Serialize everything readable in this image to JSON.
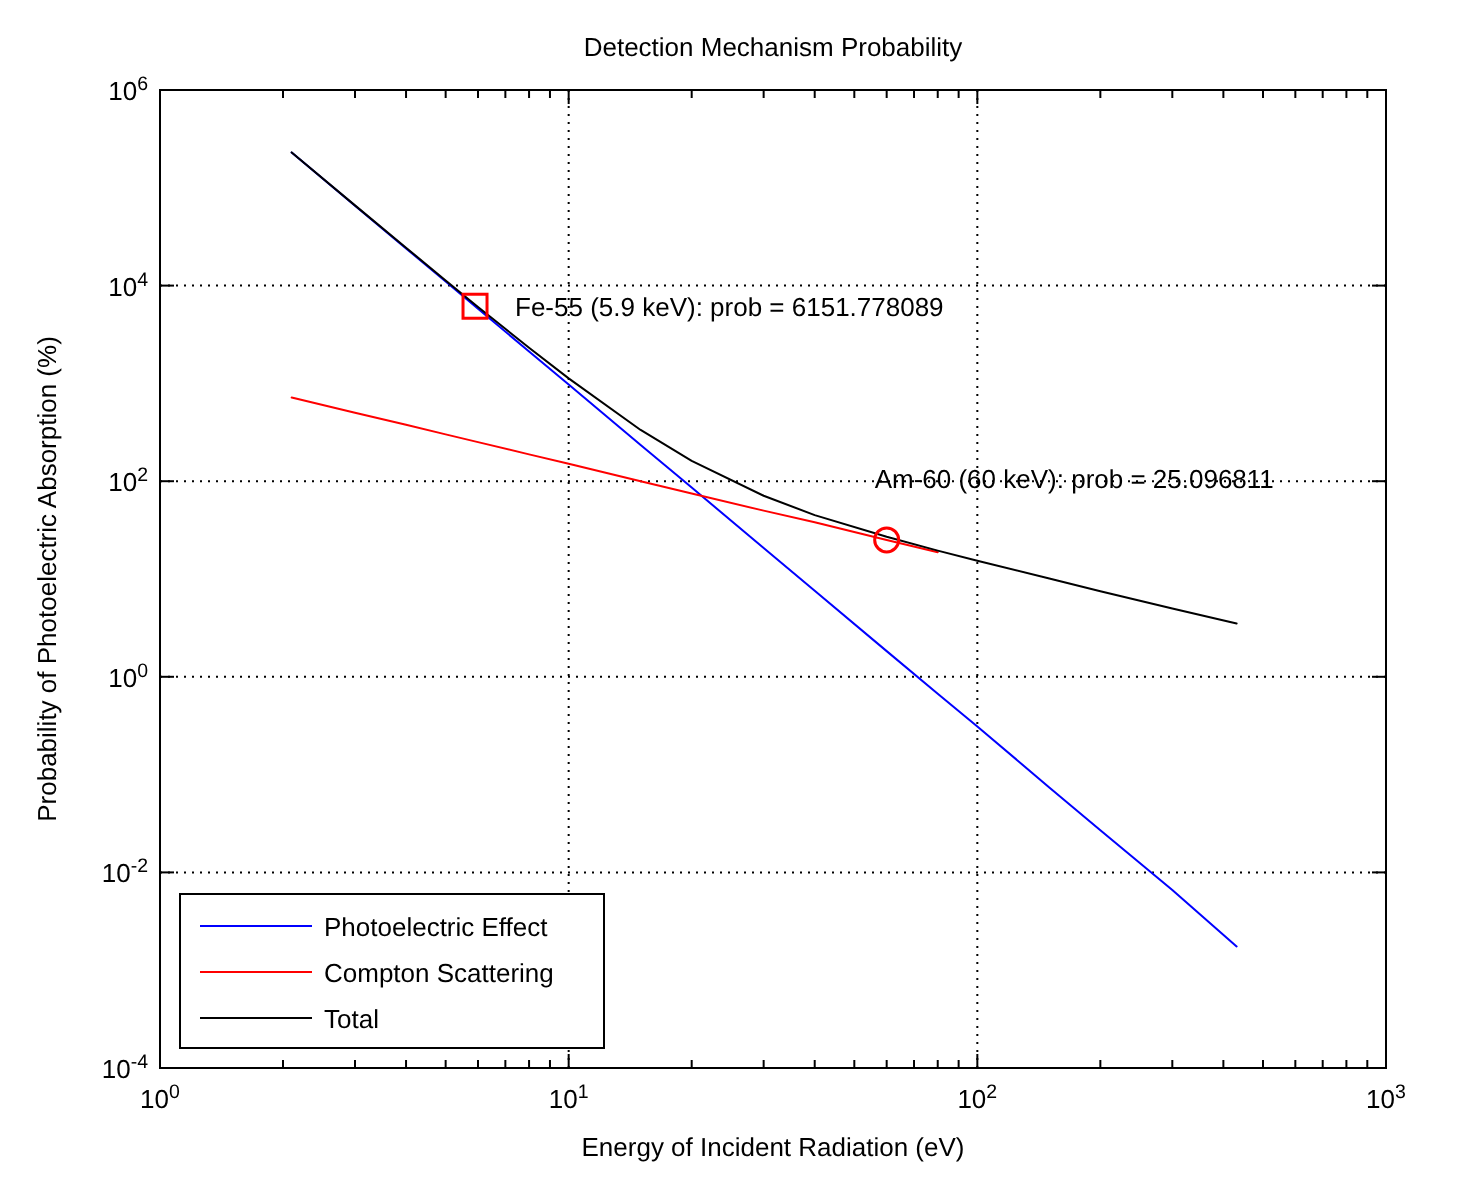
{
  "chart_data": {
    "type": "line",
    "title": "Detection Mechanism Probability",
    "xlabel": "Energy of Incident Radiation (eV)",
    "ylabel": "Probability of Photoelectric Absorption (%)",
    "log": "xy",
    "xlim": [
      1,
      1000
    ],
    "ylim": [
      0.0001,
      1000000
    ],
    "xticks": [
      {
        "value": 1,
        "label": "10$^{0}$"
      },
      {
        "value": 10,
        "label": "10$^{1}$"
      },
      {
        "value": 100,
        "label": "10$^{2}$"
      },
      {
        "value": 1000,
        "label": "10$^{3}$"
      }
    ],
    "yticks": [
      {
        "value": 0.0001,
        "label": "10$^{-4}$"
      },
      {
        "value": 0.01,
        "label": "10$^{-2}$"
      },
      {
        "value": 1,
        "label": "10$^{0}$"
      },
      {
        "value": 100,
        "label": "10$^{2}$"
      },
      {
        "value": 10000,
        "label": "10$^{4}$"
      },
      {
        "value": 1000000,
        "label": "10$^{6}$"
      }
    ],
    "grid": true,
    "legend": "bottom left",
    "line_style": "solid",
    "series": [
      {
        "name": "Photoelectric Effect",
        "color": "#0000ff",
        "x": [
          2.1,
          3,
          4,
          5,
          6,
          8,
          10,
          15,
          20,
          30,
          40,
          60,
          80,
          100,
          150,
          200,
          300,
          431
        ],
        "values": [
          229000,
          65600,
          24000,
          11000,
          5800,
          2120,
          974,
          234,
          86,
          20.8,
          7.6,
          1.83,
          0.67,
          0.31,
          0.074,
          0.027,
          0.0066,
          0.00175
        ]
      },
      {
        "name": "Compton Scattering",
        "color": "#ff0000",
        "x": [
          2.1,
          3,
          4,
          5,
          6,
          8,
          10,
          15,
          20,
          30,
          40,
          60,
          80
        ],
        "values": [
          717,
          502,
          377,
          301,
          251,
          188,
          151,
          100,
          75,
          50,
          38,
          25.1,
          18.8
        ]
      },
      {
        "name": "Total",
        "color": "#000000",
        "x": [
          2.1,
          3,
          4,
          5,
          6,
          8,
          10,
          15,
          20,
          30,
          40,
          60,
          80,
          100,
          150,
          200,
          300,
          431
        ],
        "values": [
          230000,
          66100,
          24400,
          11300,
          6050,
          2310,
          1125,
          334,
          161,
          71,
          45,
          27,
          19.5,
          15.4,
          10.1,
          7.5,
          5.0,
          3.5
        ]
      },
      {
        "type": "scatter",
        "marker": "square",
        "color": "#ff0000",
        "x": [
          5.9
        ],
        "values": [
          6151.778089
        ]
      },
      {
        "type": "scatter",
        "marker": "circle",
        "color": "#ff0000",
        "x": [
          60
        ],
        "values": [
          25.096811
        ]
      }
    ],
    "annotations": [
      {
        "text": "Fe-55 (5.9 keV): prob = 6151.778089",
        "x": 5.9,
        "y": 6151.778089
      },
      {
        "text": "Am-60 (60 keV): prob = 25.096811",
        "x": 60,
        "y": 25.096811
      }
    ]
  }
}
